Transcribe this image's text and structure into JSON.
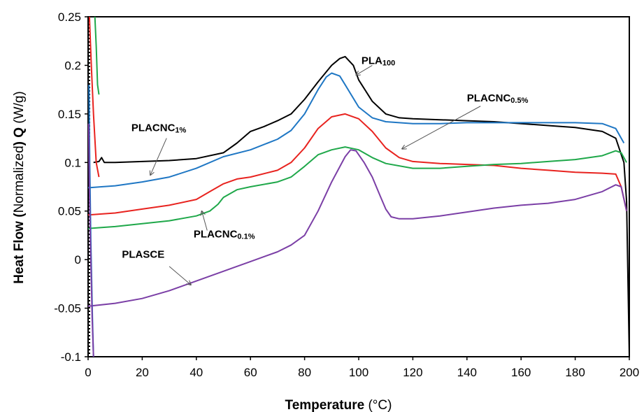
{
  "chart_data": {
    "type": "line",
    "title": "",
    "xlabel": "Temperature",
    "xlabel_unit": "(°C)",
    "ylabel_prefix": "Heat Flow (",
    "ylabel_mid": "Normalized",
    "ylabel_q": ") Q",
    "ylabel_unit": "(W/g)",
    "xlim": [
      0,
      200
    ],
    "ylim": [
      -0.1,
      0.25
    ],
    "x_ticks": [
      0,
      20,
      40,
      60,
      80,
      100,
      120,
      140,
      160,
      180,
      200
    ],
    "y_ticks": [
      -0.1,
      -0.05,
      0,
      0.05,
      0.1,
      0.15,
      0.2,
      0.25
    ],
    "y_tick_labels": [
      "-0.1",
      "-0.05",
      "0",
      "0.05",
      "0.1",
      "0.15",
      "0.2",
      "0.25"
    ],
    "grid": false,
    "legend": "none",
    "series": [
      {
        "color": "#000000",
        "points": [
          [
            2,
            0.1
          ],
          [
            4,
            0.101
          ],
          [
            5,
            0.105
          ],
          [
            6,
            0.1
          ],
          [
            10,
            0.1
          ],
          [
            20,
            0.101
          ],
          [
            30,
            0.102
          ],
          [
            40,
            0.104
          ],
          [
            50,
            0.11
          ],
          [
            55,
            0.12
          ],
          [
            60,
            0.132
          ],
          [
            65,
            0.137
          ],
          [
            70,
            0.143
          ],
          [
            75,
            0.15
          ],
          [
            80,
            0.165
          ],
          [
            85,
            0.183
          ],
          [
            90,
            0.2
          ],
          [
            93,
            0.207
          ],
          [
            95,
            0.209
          ],
          [
            98,
            0.2
          ],
          [
            100,
            0.185
          ],
          [
            105,
            0.163
          ],
          [
            110,
            0.15
          ],
          [
            115,
            0.146
          ],
          [
            120,
            0.145
          ],
          [
            130,
            0.144
          ],
          [
            140,
            0.143
          ],
          [
            150,
            0.142
          ],
          [
            160,
            0.14
          ],
          [
            170,
            0.138
          ],
          [
            180,
            0.136
          ],
          [
            190,
            0.132
          ],
          [
            195,
            0.125
          ],
          [
            198,
            0.1
          ],
          [
            199,
            0.06
          ],
          [
            200,
            -0.1
          ]
        ]
      },
      {
        "color": "#1f77c4",
        "points": [
          [
            0,
            0.074
          ],
          [
            5,
            0.075
          ],
          [
            10,
            0.076
          ],
          [
            20,
            0.08
          ],
          [
            30,
            0.085
          ],
          [
            40,
            0.094
          ],
          [
            50,
            0.106
          ],
          [
            60,
            0.113
          ],
          [
            70,
            0.124
          ],
          [
            75,
            0.133
          ],
          [
            80,
            0.15
          ],
          [
            85,
            0.175
          ],
          [
            88,
            0.188
          ],
          [
            90,
            0.192
          ],
          [
            93,
            0.189
          ],
          [
            95,
            0.18
          ],
          [
            100,
            0.157
          ],
          [
            105,
            0.146
          ],
          [
            110,
            0.142
          ],
          [
            120,
            0.14
          ],
          [
            130,
            0.14
          ],
          [
            140,
            0.141
          ],
          [
            150,
            0.141
          ],
          [
            160,
            0.141
          ],
          [
            170,
            0.141
          ],
          [
            180,
            0.141
          ],
          [
            190,
            0.14
          ],
          [
            195,
            0.135
          ],
          [
            198,
            0.12
          ]
        ]
      },
      {
        "color": "#e8231f",
        "points": [
          [
            0,
            0.046
          ],
          [
            5,
            0.047
          ],
          [
            10,
            0.048
          ],
          [
            20,
            0.052
          ],
          [
            30,
            0.056
          ],
          [
            40,
            0.062
          ],
          [
            45,
            0.07
          ],
          [
            50,
            0.078
          ],
          [
            55,
            0.083
          ],
          [
            60,
            0.085
          ],
          [
            70,
            0.092
          ],
          [
            75,
            0.1
          ],
          [
            80,
            0.115
          ],
          [
            85,
            0.135
          ],
          [
            90,
            0.147
          ],
          [
            95,
            0.15
          ],
          [
            100,
            0.145
          ],
          [
            105,
            0.132
          ],
          [
            110,
            0.115
          ],
          [
            115,
            0.105
          ],
          [
            120,
            0.101
          ],
          [
            130,
            0.099
          ],
          [
            140,
            0.098
          ],
          [
            150,
            0.097
          ],
          [
            160,
            0.094
          ],
          [
            170,
            0.092
          ],
          [
            180,
            0.09
          ],
          [
            190,
            0.089
          ],
          [
            195,
            0.088
          ],
          [
            197,
            0.075
          ],
          [
            199,
            0.05
          ]
        ]
      },
      {
        "color": "#1fa84a",
        "points": [
          [
            0,
            0.032
          ],
          [
            5,
            0.033
          ],
          [
            10,
            0.034
          ],
          [
            20,
            0.037
          ],
          [
            30,
            0.04
          ],
          [
            40,
            0.045
          ],
          [
            45,
            0.05
          ],
          [
            48,
            0.057
          ],
          [
            50,
            0.064
          ],
          [
            55,
            0.072
          ],
          [
            60,
            0.075
          ],
          [
            70,
            0.08
          ],
          [
            75,
            0.085
          ],
          [
            80,
            0.096
          ],
          [
            85,
            0.108
          ],
          [
            90,
            0.113
          ],
          [
            95,
            0.116
          ],
          [
            100,
            0.113
          ],
          [
            105,
            0.105
          ],
          [
            110,
            0.099
          ],
          [
            120,
            0.094
          ],
          [
            130,
            0.094
          ],
          [
            140,
            0.096
          ],
          [
            150,
            0.098
          ],
          [
            160,
            0.099
          ],
          [
            170,
            0.101
          ],
          [
            180,
            0.103
          ],
          [
            190,
            0.107
          ],
          [
            195,
            0.112
          ],
          [
            197,
            0.11
          ],
          [
            199,
            0.1
          ]
        ]
      },
      {
        "color": "#7b3fa6",
        "points": [
          [
            0,
            -0.048
          ],
          [
            10,
            -0.045
          ],
          [
            20,
            -0.04
          ],
          [
            30,
            -0.032
          ],
          [
            40,
            -0.022
          ],
          [
            50,
            -0.012
          ],
          [
            60,
            -0.002
          ],
          [
            70,
            0.008
          ],
          [
            75,
            0.015
          ],
          [
            80,
            0.025
          ],
          [
            85,
            0.05
          ],
          [
            90,
            0.08
          ],
          [
            95,
            0.106
          ],
          [
            97,
            0.113
          ],
          [
            99,
            0.112
          ],
          [
            102,
            0.1
          ],
          [
            105,
            0.085
          ],
          [
            108,
            0.065
          ],
          [
            110,
            0.052
          ],
          [
            112,
            0.044
          ],
          [
            115,
            0.042
          ],
          [
            120,
            0.042
          ],
          [
            130,
            0.045
          ],
          [
            140,
            0.049
          ],
          [
            150,
            0.053
          ],
          [
            160,
            0.056
          ],
          [
            170,
            0.058
          ],
          [
            180,
            0.062
          ],
          [
            190,
            0.07
          ],
          [
            195,
            0.077
          ],
          [
            197,
            0.075
          ],
          [
            199,
            0.05
          ]
        ]
      },
      {
        "color": "#e8231f",
        "points": [
          [
            0.5,
            0.25
          ],
          [
            1.2,
            0.2
          ],
          [
            2,
            0.15
          ],
          [
            3,
            0.1
          ],
          [
            4,
            0.085
          ]
        ]
      },
      {
        "color": "#1fa84a",
        "points": [
          [
            2.5,
            0.25
          ],
          [
            3,
            0.22
          ],
          [
            3.5,
            0.18
          ],
          [
            4,
            0.17
          ]
        ]
      },
      {
        "color": "#1f77c4",
        "points": [
          [
            0.3,
            0.18
          ],
          [
            0.6,
            0.1
          ],
          [
            1,
            0.02
          ],
          [
            1.6,
            -0.06
          ],
          [
            2,
            -0.1
          ]
        ]
      },
      {
        "color": "#7b3fa6",
        "points": [
          [
            0.2,
            0.14
          ],
          [
            0.5,
            0.07
          ],
          [
            1,
            0.0
          ],
          [
            1.5,
            -0.06
          ],
          [
            2,
            -0.1
          ]
        ]
      }
    ],
    "annotations": [
      {
        "name": "PLA",
        "sub": "100",
        "text_x": 101,
        "text_y": 0.2015,
        "arrow_from": [
          105,
          0.2
        ],
        "arrow_to": [
          99,
          0.19
        ]
      },
      {
        "name": "PLACNC",
        "sub": "0.5%",
        "text_x": 140,
        "text_y": 0.1627,
        "arrow_from": [
          145,
          0.158
        ],
        "arrow_to": [
          116,
          0.114
        ]
      },
      {
        "name": "PLACNC",
        "sub": "1%",
        "text_x": 16,
        "text_y": 0.1322,
        "arrow_from": [
          29,
          0.125
        ],
        "arrow_to": [
          23,
          0.087
        ]
      },
      {
        "name": "PLACNC",
        "sub": "0.1%",
        "text_x": 39,
        "text_y": 0.0228,
        "arrow_from": [
          44,
          0.03
        ],
        "arrow_to": [
          42,
          0.05
        ]
      },
      {
        "name": "PLASCE",
        "sub": "",
        "text_x": 12.5,
        "text_y": 0.0018,
        "arrow_from": [
          30,
          -0.007
        ],
        "arrow_to": [
          38,
          -0.026
        ]
      }
    ]
  }
}
